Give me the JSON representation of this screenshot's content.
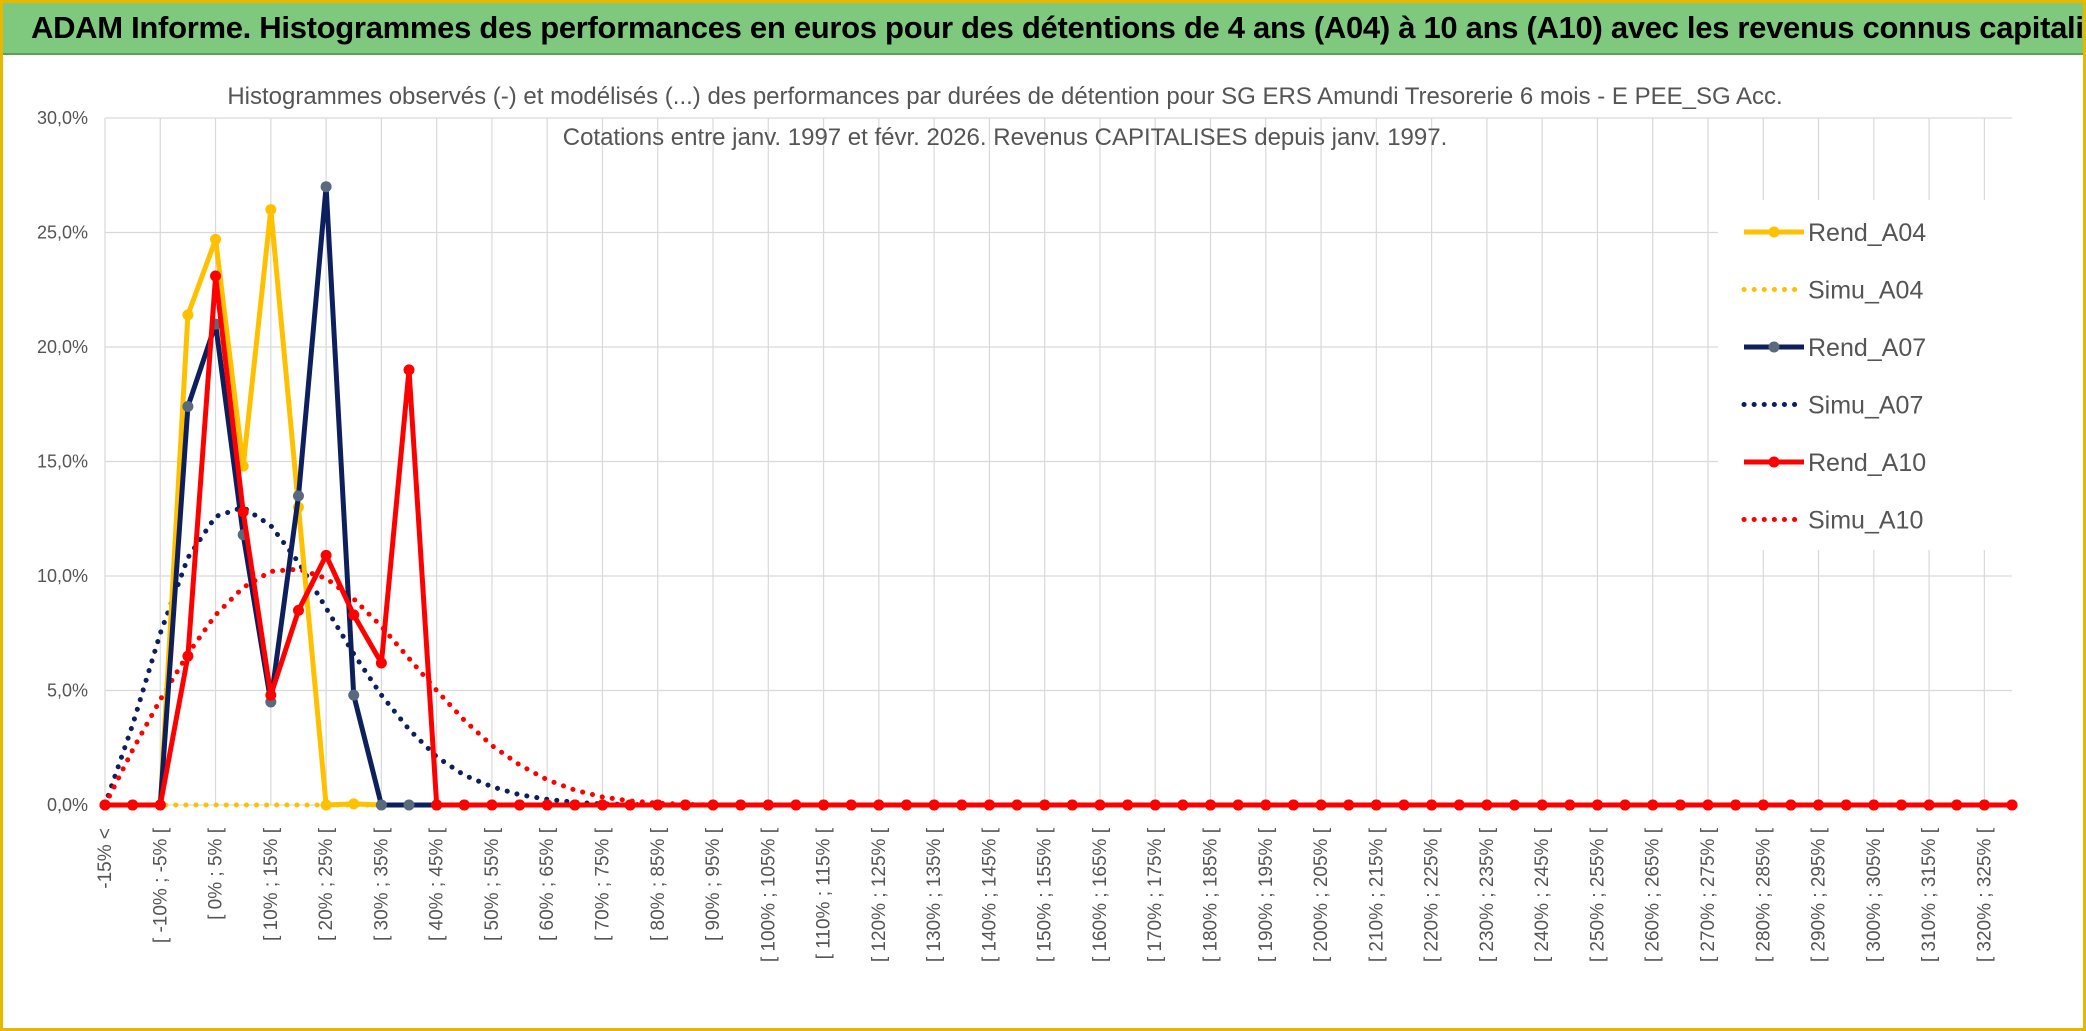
{
  "banner": {
    "title": "ADAM Informe. Histogrammes des performances en euros pour des détentions de 4 ans (A04) à 10 ans (A10) avec les revenus connus capitalisés"
  },
  "chart_data": {
    "type": "line",
    "title": [
      "Histogrammes observés (-) et modélisés (...) des performances par durées de détention pour SG ERS Amundi Tresorerie 6 mois - E PEE_SG Acc.",
      "Cotations entre janv. 1997 et févr. 2026. Revenus CAPITALISES depuis janv. 1997."
    ],
    "ylim": [
      0,
      30
    ],
    "yticks": [
      0,
      5,
      10,
      15,
      20,
      25,
      30
    ],
    "ytick_labels": [
      "0,0%",
      "5,0%",
      "10,0%",
      "15,0%",
      "20,0%",
      "25,0%",
      "30,0%"
    ],
    "x_tick_labels": [
      "-15% <",
      "[ -10% ; -5% [",
      "[ 0% ; 5% [",
      "[ 10% ; 15% [",
      "[ 20% ; 25% [",
      "[ 30% ; 35% [",
      "[ 40% ; 45% [",
      "[ 50% ; 55% [",
      "[ 60% ; 65% [",
      "[ 70% ; 75% [",
      "[ 80% ; 85% [",
      "[ 90% ; 95% [",
      "[ 100% ; 105% [",
      "[ 110% ; 115% [",
      "[ 120% ; 125% [",
      "[ 130% ; 135% [",
      "[ 140% ; 145% [",
      "[ 150% ; 155% [",
      "[ 160% ; 165% [",
      "[ 170% ; 175% [",
      "[ 180% ; 185% [",
      "[ 190% ; 195% [",
      "[ 200% ; 205% [",
      "[ 210% ; 215% [",
      "[ 220% ; 225% [",
      "[ 230% ; 235% [",
      "[ 240% ; 245% [",
      "[ 250% ; 255% [",
      "[ 260% ; 265% [",
      "[ 270% ; 275% [",
      "[ 280% ; 285% [",
      "[ 290% ; 295% [",
      "[ 300% ; 305% [",
      "[ 310% ; 315% [",
      "[ 320% ; 325% ["
    ],
    "n_categories": 70,
    "series": [
      {
        "name": "Rend_A04",
        "style": "solid",
        "color": "#ffc000",
        "values": [
          0,
          0,
          0,
          21.4,
          24.7,
          14.8,
          26.0,
          13.0,
          0,
          0.05
        ]
      },
      {
        "name": "Simu_A04",
        "style": "dotted",
        "color": "#ffc000",
        "values": [
          0,
          0,
          0,
          0,
          0,
          0,
          0,
          0,
          0
        ]
      },
      {
        "name": "Rend_A07",
        "style": "solid",
        "color": "#0d1f5c",
        "values": [
          0,
          0,
          0,
          17.4,
          21.0,
          11.8,
          4.5,
          13.5,
          27.0,
          4.8,
          0,
          0
        ]
      },
      {
        "name": "Simu_A07",
        "style": "dotted",
        "color": "#0d1f5c",
        "values": [
          0,
          3.5,
          7.5,
          10.8,
          12.6,
          13.0,
          12.2,
          10.6,
          8.6,
          6.6,
          4.8,
          3.3,
          2.1,
          1.3,
          0.8,
          0.45,
          0.25,
          0.12,
          0.05,
          0.02,
          0
        ]
      },
      {
        "name": "Rend_A10",
        "style": "solid",
        "color": "#ff0000",
        "values": [
          0,
          0,
          0,
          6.5,
          23.1,
          12.8,
          4.8,
          8.5,
          10.9,
          8.3,
          6.2,
          19.0,
          0
        ]
      },
      {
        "name": "Simu_A10",
        "style": "dotted",
        "color": "#ff0000",
        "values": [
          0,
          2.4,
          4.6,
          6.6,
          8.3,
          9.5,
          10.2,
          10.3,
          9.9,
          9.0,
          7.8,
          6.4,
          5.0,
          3.7,
          2.6,
          1.75,
          1.1,
          0.65,
          0.35,
          0.18,
          0.08,
          0.03,
          0
        ]
      }
    ],
    "legend_position": "right"
  }
}
